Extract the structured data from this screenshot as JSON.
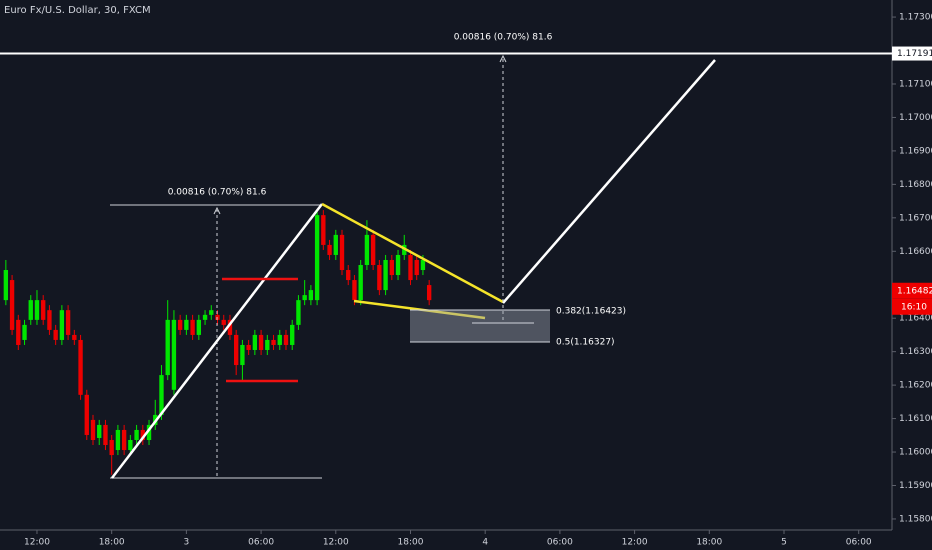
{
  "chart_data": {
    "type": "candlestick",
    "title": "Euro Fx/U.S. Dollar, 30, FXCM",
    "x": [
      -5,
      -4,
      -3,
      -2,
      -1,
      0,
      1,
      2,
      3,
      4,
      5,
      6,
      7,
      8,
      9,
      10,
      11,
      12,
      13,
      14,
      15,
      16,
      17,
      18,
      19,
      20,
      21,
      22,
      23,
      24,
      25,
      26,
      27,
      28,
      29,
      30,
      31,
      32,
      33,
      34,
      35,
      36,
      37,
      38,
      39,
      40,
      41,
      42,
      43,
      44,
      45,
      46,
      47,
      48,
      49,
      50,
      51,
      52,
      53,
      54,
      55,
      56,
      57,
      58,
      59,
      60,
      61,
      62,
      63
    ],
    "open": [
      1.16454,
      1.16514,
      1.16395,
      1.16335,
      1.16395,
      1.16395,
      1.16454,
      1.16424,
      1.16365,
      1.16335,
      1.16424,
      1.1635,
      1.16335,
      1.16171,
      1.16096,
      1.16042,
      1.16081,
      1.16036,
      1.16006,
      1.16066,
      1.16006,
      1.16036,
      1.16066,
      1.16036,
      1.16081,
      1.16111,
      1.1623,
      1.16186,
      1.16395,
      1.16365,
      1.16395,
      1.1635,
      1.16395,
      1.1641,
      1.1641,
      1.16395,
      1.16395,
      1.1635,
      1.1626,
      1.1632,
      1.16305,
      1.1635,
      1.16305,
      1.16335,
      1.1632,
      1.1635,
      1.1632,
      1.1638,
      1.16454,
      1.16454,
      1.16454,
      1.16708,
      1.16619,
      1.16589,
      1.16649,
      1.16544,
      1.16514,
      1.16454,
      1.16559,
      1.16649,
      1.16559,
      1.16484,
      1.16574,
      1.16529,
      1.16589,
      1.16589,
      1.16574,
      1.16544,
      1.16499
    ],
    "high": [
      1.16574,
      1.16529,
      1.1641,
      1.16395,
      1.16469,
      1.16484,
      1.16469,
      1.16439,
      1.1638,
      1.16439,
      1.16439,
      1.16365,
      1.1635,
      1.16186,
      1.16111,
      1.16096,
      1.16096,
      1.16051,
      1.16081,
      1.16081,
      1.16051,
      1.16081,
      1.16081,
      1.16096,
      1.16156,
      1.1626,
      1.16454,
      1.16424,
      1.1641,
      1.1641,
      1.1641,
      1.1641,
      1.16424,
      1.16439,
      1.16424,
      1.1641,
      1.1641,
      1.16365,
      1.16335,
      1.16335,
      1.16365,
      1.16365,
      1.1635,
      1.1635,
      1.16365,
      1.16365,
      1.16395,
      1.16469,
      1.16514,
      1.16499,
      1.16723,
      1.16723,
      1.16634,
      1.16664,
      1.16664,
      1.16559,
      1.16529,
      1.16574,
      1.16693,
      1.16664,
      1.16574,
      1.16589,
      1.16589,
      1.16604,
      1.16649,
      1.16604,
      1.16589,
      1.16589,
      1.16514
    ],
    "low": [
      1.16439,
      1.1635,
      1.16305,
      1.1632,
      1.1638,
      1.1638,
      1.1638,
      1.1635,
      1.1632,
      1.1632,
      1.16335,
      1.1632,
      1.16156,
      1.16036,
      1.16021,
      1.16021,
      1.16006,
      1.15932,
      1.15991,
      1.15991,
      1.15991,
      1.16021,
      1.16021,
      1.16021,
      1.16066,
      1.16096,
      1.16215,
      1.16171,
      1.1635,
      1.1635,
      1.16335,
      1.16335,
      1.1638,
      1.16395,
      1.1638,
      1.16365,
      1.16335,
      1.1623,
      1.16215,
      1.1629,
      1.1629,
      1.1629,
      1.1629,
      1.16305,
      1.16305,
      1.16305,
      1.16305,
      1.16365,
      1.16439,
      1.16439,
      1.16439,
      1.16604,
      1.16574,
      1.16574,
      1.16529,
      1.16499,
      1.16439,
      1.16439,
      1.16544,
      1.16544,
      1.16469,
      1.16469,
      1.16514,
      1.16514,
      1.16574,
      1.16499,
      1.16514,
      1.16529,
      1.16439
    ],
    "close": [
      1.16544,
      1.16365,
      1.1632,
      1.1638,
      1.16454,
      1.16454,
      1.16395,
      1.16365,
      1.16335,
      1.16424,
      1.1635,
      1.16335,
      1.16171,
      1.16051,
      1.16036,
      1.16081,
      1.16021,
      1.15991,
      1.16066,
      1.16006,
      1.16036,
      1.16066,
      1.16036,
      1.16081,
      1.16111,
      1.1623,
      1.16395,
      1.16395,
      1.16365,
      1.16395,
      1.1635,
      1.16395,
      1.1641,
      1.16424,
      1.16395,
      1.1638,
      1.1635,
      1.1626,
      1.1632,
      1.16305,
      1.1635,
      1.16305,
      1.16335,
      1.1632,
      1.1635,
      1.1632,
      1.1638,
      1.16454,
      1.16469,
      1.16484,
      1.16708,
      1.16619,
      1.16589,
      1.16649,
      1.16544,
      1.16514,
      1.16454,
      1.16559,
      1.16649,
      1.16559,
      1.16484,
      1.16574,
      1.16529,
      1.16589,
      1.16619,
      1.16514,
      1.16529,
      1.16574,
      1.16454
    ],
    "up_color": "#00e600",
    "down_color": "#ee0000",
    "xlim": [
      -5.94,
      137.35
    ],
    "xticks": [
      {
        "value": 0,
        "label": "12:00"
      },
      {
        "value": 12,
        "label": "18:00"
      },
      {
        "value": 24,
        "label": "3"
      },
      {
        "value": 36,
        "label": "06:00"
      },
      {
        "value": 48,
        "label": "12:00"
      },
      {
        "value": 60,
        "label": "18:00"
      },
      {
        "value": 72,
        "label": "4"
      },
      {
        "value": 84,
        "label": "06:00"
      },
      {
        "value": 96,
        "label": "12:00"
      },
      {
        "value": 108,
        "label": "18:00"
      },
      {
        "value": 120,
        "label": "5"
      },
      {
        "value": 132,
        "label": "06:00"
      }
    ],
    "ylim": [
      1.15767,
      1.17351
    ],
    "yticks": [
      {
        "value": 1.173,
        "label": "1.17300"
      },
      {
        "value": 1.171,
        "label": "1.17100"
      },
      {
        "value": 1.17,
        "label": "1.17000"
      },
      {
        "value": 1.169,
        "label": "1.16900"
      },
      {
        "value": 1.168,
        "label": "1.16800"
      },
      {
        "value": 1.167,
        "label": "1.16700"
      },
      {
        "value": 1.166,
        "label": "1.16600"
      },
      {
        "value": 1.164,
        "label": "1.16400"
      },
      {
        "value": 1.163,
        "label": "1.16300"
      },
      {
        "value": 1.162,
        "label": "1.16200"
      },
      {
        "value": 1.161,
        "label": "1.16100"
      },
      {
        "value": 1.16,
        "label": "1.16000"
      },
      {
        "value": 1.159,
        "label": "1.15900"
      },
      {
        "value": 1.158,
        "label": "1.15800"
      }
    ],
    "price_line": 1.17191,
    "last_price": 1.16482,
    "countdown": "16:10",
    "annotations": [
      "0.00816 (0.70%) 81.6",
      "0.00816 (0.70%) 81.6",
      "0.382(1.16423)",
      "0.5(1.16327)"
    ]
  }
}
